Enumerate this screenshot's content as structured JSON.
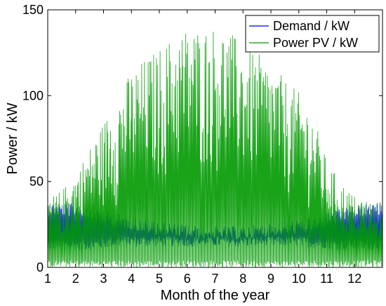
{
  "chart_data": {
    "type": "line",
    "title": "",
    "xlabel": "Month of the year",
    "ylabel": "Power / kW",
    "xlim": [
      1,
      13
    ],
    "ylim": [
      0,
      150
    ],
    "x_ticks": [
      1,
      2,
      3,
      4,
      5,
      6,
      7,
      8,
      9,
      10,
      11,
      12
    ],
    "y_ticks": [
      0,
      50,
      100,
      150
    ],
    "legend_position": "top-right",
    "grid": false,
    "series": [
      {
        "name": "Demand / kW",
        "color": "#0000ff",
        "style": "dense daily oscillation",
        "month": [
          1,
          1.5,
          2,
          2.5,
          3,
          3.5,
          4,
          4.5,
          5,
          5.5,
          6,
          6.5,
          7,
          7.5,
          8,
          8.5,
          9,
          9.5,
          10,
          10.5,
          11,
          11.5,
          12,
          12.5,
          13
        ],
        "min_kW": [
          10,
          10,
          10,
          10,
          11,
          12,
          12,
          12,
          12,
          12,
          12,
          12,
          12,
          12,
          12,
          12,
          12,
          12,
          12,
          11,
          11,
          10,
          10,
          10,
          10
        ],
        "max_kW": [
          38,
          38,
          37,
          36,
          34,
          32,
          30,
          28,
          27,
          26,
          25,
          24,
          24,
          24,
          24,
          25,
          26,
          27,
          28,
          29,
          32,
          34,
          36,
          37,
          38
        ]
      },
      {
        "name": "Power PV / kW",
        "color": "#009900",
        "style": "dense daily oscillation",
        "month": [
          1,
          1.5,
          2,
          2.5,
          3,
          3.5,
          4,
          4.5,
          5,
          5.5,
          6,
          6.5,
          7,
          7.5,
          8,
          8.5,
          9,
          9.5,
          10,
          10.5,
          11,
          11.5,
          12,
          12.5,
          13
        ],
        "min_kW": [
          0,
          0,
          0,
          0,
          0,
          0,
          0,
          0,
          0,
          0,
          0,
          0,
          0,
          0,
          0,
          0,
          0,
          0,
          0,
          0,
          0,
          0,
          0,
          0,
          0
        ],
        "max_kW": [
          40,
          45,
          55,
          70,
          85,
          100,
          115,
          122,
          128,
          135,
          141,
          140,
          141,
          138,
          130,
          125,
          118,
          110,
          102,
          90,
          62,
          50,
          42,
          40,
          38
        ]
      }
    ]
  }
}
